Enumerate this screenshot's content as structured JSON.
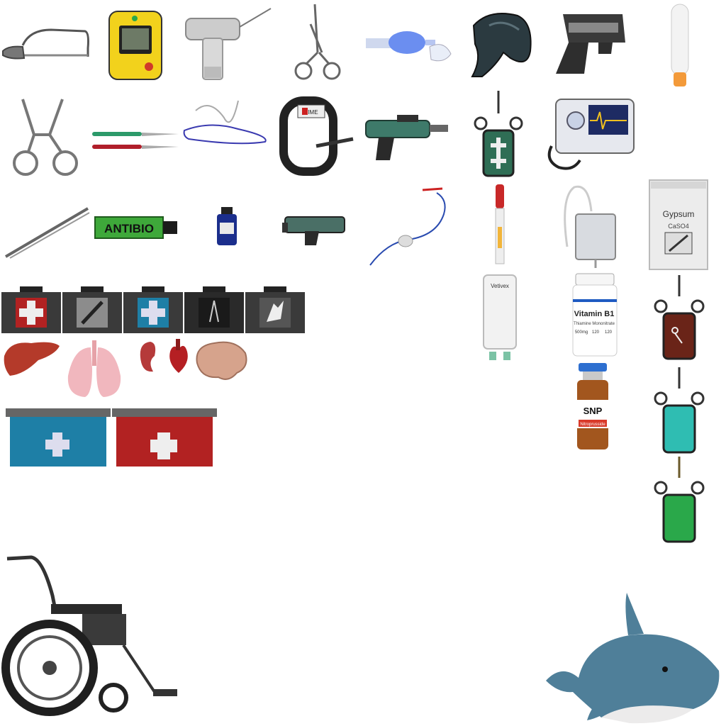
{
  "sprites": {
    "antibio_label": "ANTIBIO",
    "gypsum_label": "Gypsum",
    "gypsum_formula": "CaSO4",
    "vitamin_label": "Vitamin B1",
    "vitamin_sub": "Thiamine Mononitrate",
    "vitamin_dose": "500mg",
    "vitamin_count": "120",
    "vitamin_count2": "120",
    "snp_label": "SNP",
    "snp_sub": "Nitroprusside",
    "iv_brand": "Vetivex",
    "tourniquet_label": "TIME"
  },
  "colors": {
    "case_red": "#b22222",
    "case_blue": "#1e7fa6",
    "defib_yellow": "#f2d21c",
    "serum_teal": "#2fbdb2",
    "serum_green": "#2aa84a",
    "serum_brown": "#6a2418"
  }
}
